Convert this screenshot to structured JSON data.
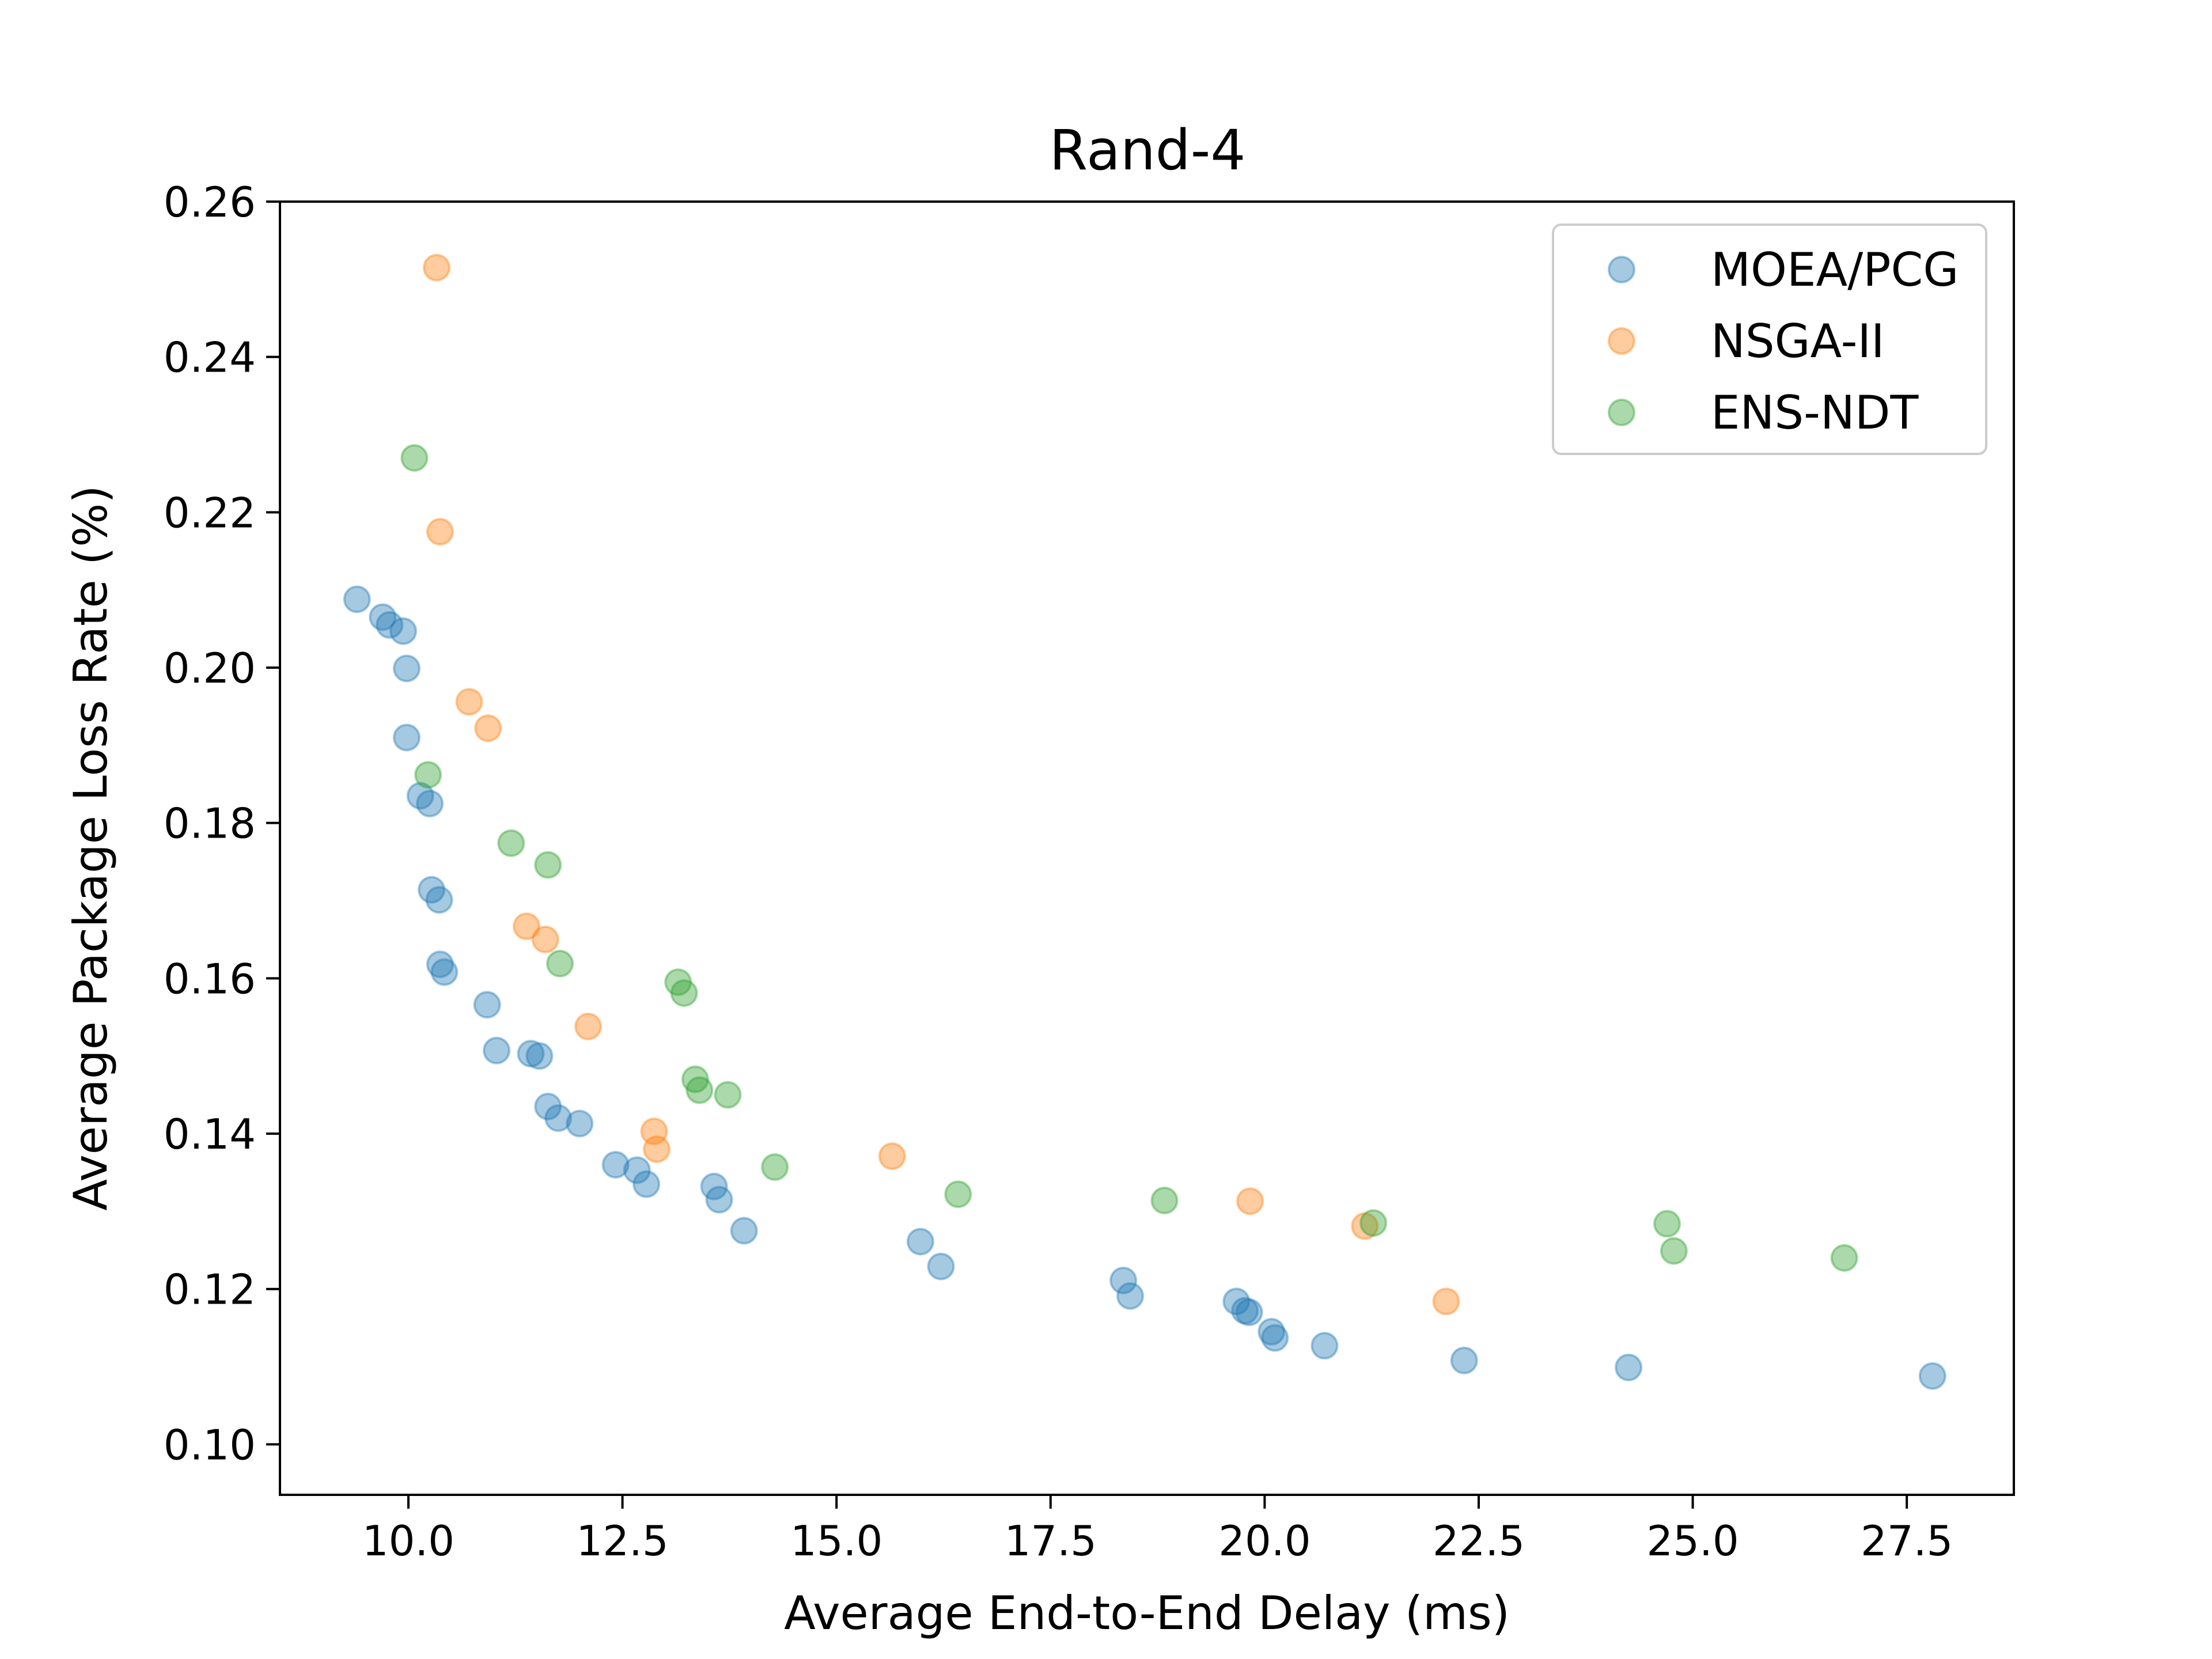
{
  "chart_data": {
    "type": "scatter",
    "title": "Rand-4",
    "xlabel": "Average End-to-End Delay (ms)",
    "ylabel": "Average Package Loss Rate (%)",
    "xlim": [
      8.5,
      28.75
    ],
    "ylim": [
      0.0935,
      0.26
    ],
    "xticks": [
      10.0,
      12.5,
      15.0,
      17.5,
      20.0,
      22.5,
      25.0,
      27.5
    ],
    "xtick_labels": [
      "10.0",
      "12.5",
      "15.0",
      "17.5",
      "20.0",
      "22.5",
      "25.0",
      "27.5"
    ],
    "yticks": [
      0.1,
      0.12,
      0.14,
      0.16,
      0.18,
      0.2,
      0.22,
      0.24,
      0.26
    ],
    "ytick_labels": [
      "0.10",
      "0.12",
      "0.14",
      "0.16",
      "0.18",
      "0.20",
      "0.22",
      "0.24",
      "0.26"
    ],
    "grid": false,
    "legend_position": "top-right",
    "series": [
      {
        "name": "MOEA/PCG",
        "color": "#1f77b4",
        "points": [
          [
            9.4,
            0.2088
          ],
          [
            9.7,
            0.2065
          ],
          [
            9.78,
            0.2055
          ],
          [
            9.94,
            0.2047
          ],
          [
            9.98,
            0.1999
          ],
          [
            9.98,
            0.191
          ],
          [
            10.14,
            0.1835
          ],
          [
            10.25,
            0.1825
          ],
          [
            10.27,
            0.1714
          ],
          [
            10.36,
            0.1701
          ],
          [
            10.37,
            0.1618
          ],
          [
            10.42,
            0.1608
          ],
          [
            10.92,
            0.1566
          ],
          [
            11.03,
            0.1507
          ],
          [
            11.43,
            0.1503
          ],
          [
            11.53,
            0.15
          ],
          [
            11.63,
            0.1435
          ],
          [
            11.75,
            0.142
          ],
          [
            12.0,
            0.1413
          ],
          [
            12.42,
            0.136
          ],
          [
            12.67,
            0.1353
          ],
          [
            12.78,
            0.1335
          ],
          [
            13.57,
            0.1332
          ],
          [
            13.63,
            0.1315
          ],
          [
            13.92,
            0.1275
          ],
          [
            15.98,
            0.1261
          ],
          [
            16.22,
            0.1229
          ],
          [
            18.35,
            0.1211
          ],
          [
            18.43,
            0.1191
          ],
          [
            19.67,
            0.1184
          ],
          [
            19.77,
            0.1172
          ],
          [
            19.82,
            0.117
          ],
          [
            20.08,
            0.1145
          ],
          [
            20.12,
            0.1137
          ],
          [
            20.7,
            0.1127
          ],
          [
            22.33,
            0.1108
          ],
          [
            24.25,
            0.1099
          ],
          [
            27.8,
            0.1088
          ]
        ]
      },
      {
        "name": "NSGA-II",
        "color": "#ff7f0e",
        "points": [
          [
            10.33,
            0.2515
          ],
          [
            10.37,
            0.2175
          ],
          [
            10.71,
            0.1956
          ],
          [
            10.93,
            0.1922
          ],
          [
            11.38,
            0.1667
          ],
          [
            11.6,
            0.165
          ],
          [
            12.1,
            0.1538
          ],
          [
            12.87,
            0.1403
          ],
          [
            12.9,
            0.138
          ],
          [
            15.65,
            0.1371
          ],
          [
            19.83,
            0.1313
          ],
          [
            21.17,
            0.1281
          ],
          [
            22.12,
            0.1184
          ]
        ]
      },
      {
        "name": "ENS-NDT",
        "color": "#2ca02c",
        "points": [
          [
            10.07,
            0.227
          ],
          [
            10.23,
            0.1862
          ],
          [
            11.2,
            0.1774
          ],
          [
            11.63,
            0.1746
          ],
          [
            11.77,
            0.1619
          ],
          [
            13.15,
            0.1595
          ],
          [
            13.22,
            0.1581
          ],
          [
            13.35,
            0.147
          ],
          [
            13.4,
            0.1456
          ],
          [
            13.73,
            0.145
          ],
          [
            14.28,
            0.1357
          ],
          [
            16.42,
            0.1322
          ],
          [
            18.83,
            0.1314
          ],
          [
            21.27,
            0.1285
          ],
          [
            24.7,
            0.1284
          ],
          [
            24.78,
            0.1249
          ],
          [
            26.77,
            0.124
          ]
        ]
      }
    ]
  }
}
